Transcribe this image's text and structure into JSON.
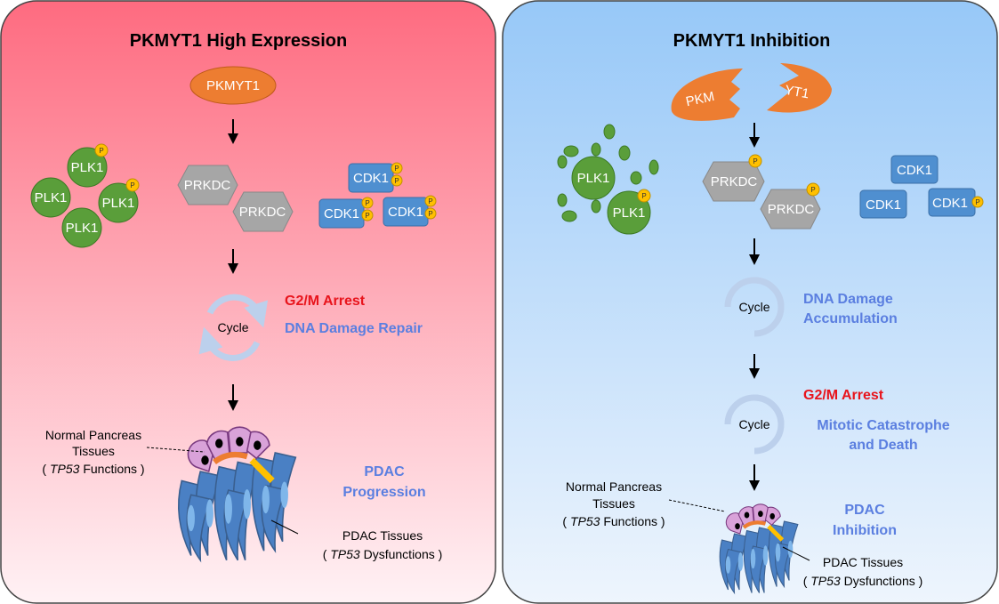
{
  "left": {
    "title": "PKMYT1 High Expression",
    "kinase": "PKMYT1",
    "plk1": "PLK1",
    "prkdc": "PRKDC",
    "cdk1": "CDK1",
    "phospho": "P",
    "cycle": "Cycle",
    "outcome_red": "G2/M Arrest",
    "outcome_blue": "DNA Damage Repair",
    "normal_tissue": [
      "Normal Pancreas",
      "Tissues",
      "( ",
      "TP53",
      " Functions )"
    ],
    "pdac_result": [
      "PDAC",
      "Progression"
    ],
    "pdac_tissue": [
      "PDAC Tissues",
      "( ",
      "TP53",
      " Dysfunctions )"
    ]
  },
  "right": {
    "title": "PKMYT1 Inhibition",
    "kinase_left": "PKM",
    "kinase_right": "YT1",
    "plk1": "PLK1",
    "prkdc": "PRKDC",
    "cdk1": "CDK1",
    "phospho": "P",
    "cycle": "Cycle",
    "step1_blue": [
      "DNA Damage",
      "Accumulation"
    ],
    "outcome_red": "G2/M Arrest",
    "outcome_blue": [
      "Mitotic Catastrophe",
      "and Death"
    ],
    "normal_tissue": [
      "Normal Pancreas",
      "Tissues",
      "( ",
      "TP53",
      " Functions )"
    ],
    "pdac_result": [
      "PDAC",
      "Inhibition"
    ],
    "pdac_tissue": [
      "PDAC Tissues",
      "( ",
      "TP53",
      " Dysfunctions )"
    ]
  },
  "colors": {
    "left_bg_top": "#fe6b80",
    "right_bg_top": "#9ccbf8",
    "pkmyt1": "#ed7d31",
    "plk1": "#5a9e3a",
    "prkdc": "#a6a6a6",
    "cdk1": "#4f8fd0",
    "phospho": "#ffc000",
    "arrest": "#e8141c",
    "effect": "#5b7fe0"
  }
}
